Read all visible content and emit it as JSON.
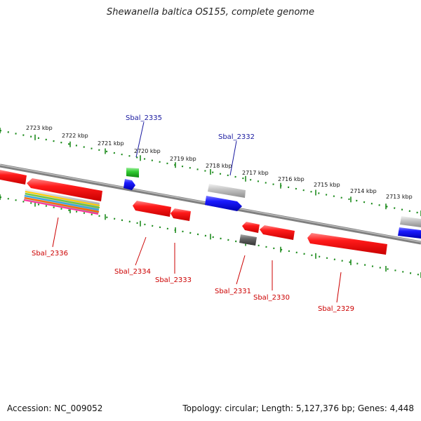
{
  "header": {
    "title": "Shewanella baltica OS155, complete genome"
  },
  "footer": {
    "accession": "Accession: NC_009052",
    "summary": "Topology: circular; Length: 5,127,376 bp; Genes: 4,448"
  },
  "scale_labels": [
    "2723 kbp",
    "2722 kbp",
    "2721 kbp",
    "2720 kbp",
    "2719 kbp",
    "2718 kbp",
    "2717 kbp",
    "2716 kbp",
    "2715 kbp",
    "2714 kbp",
    "2713 kbp"
  ],
  "gene_labels": {
    "forward": [
      "Sbal_2335",
      "Sbal_2332"
    ],
    "reverse": [
      "Sbal_2336",
      "Sbal_2334",
      "Sbal_2333",
      "Sbal_2331",
      "Sbal_2330",
      "Sbal_2329"
    ]
  },
  "colors": {
    "forward_label": "#1a1aa0",
    "reverse_label": "#cc0000",
    "backbone": "#8c8c8c",
    "ticks": "#228b22",
    "gene_red": "#ee1111",
    "gene_blue": "#1a1aee",
    "gene_green": "#22bb22",
    "gene_gray": "#bbbbbb",
    "gene_dark": "#555555"
  }
}
